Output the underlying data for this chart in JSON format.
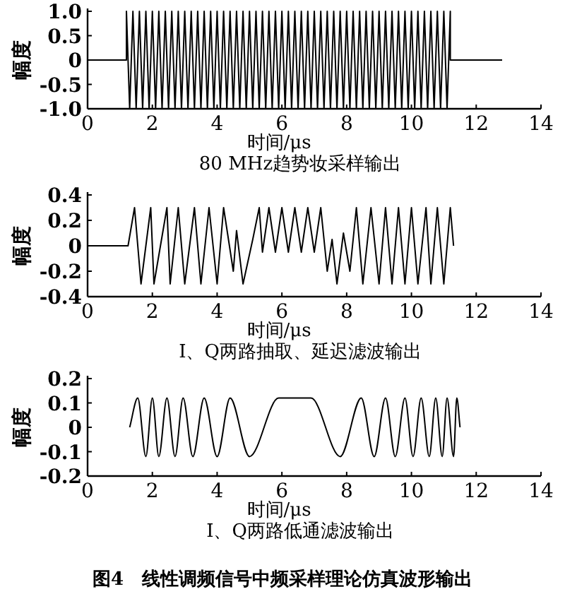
{
  "chart_data": [
    {
      "type": "line",
      "title": "80 MHz趋势妆采样输出",
      "xlabel": "时间/μs",
      "ylabel": "幅度",
      "xlim": [
        0,
        14
      ],
      "xticks": [
        0,
        2,
        4,
        6,
        8,
        10,
        12,
        14
      ],
      "ylim": [
        -1,
        1
      ],
      "yticks": [
        {
          "value": -1,
          "label": "-1.0"
        },
        -0.5,
        0,
        0.5,
        {
          "value": 1,
          "label": "1.0"
        }
      ],
      "series": [
        {
          "color": "#000000",
          "x": [
            0,
            1.2,
            1.2,
            1.3,
            1.4,
            1.5,
            1.6,
            1.7,
            1.8,
            1.9,
            2.0,
            2.1,
            2.2,
            2.3,
            2.4,
            2.5,
            2.6,
            2.7,
            2.8,
            2.9,
            3.0,
            3.1,
            3.2,
            3.3,
            3.4,
            3.5,
            3.6,
            3.7,
            3.8,
            3.9,
            4.0,
            4.1,
            4.2,
            4.3,
            4.4,
            4.5,
            4.6,
            4.7,
            4.8,
            4.9,
            5.0,
            5.1,
            5.2,
            5.3,
            5.4,
            5.5,
            5.6,
            5.7,
            5.8,
            5.9,
            6.0,
            6.1,
            6.2,
            6.3,
            6.4,
            6.5,
            6.6,
            6.7,
            6.8,
            6.9,
            7.0,
            7.1,
            7.2,
            7.3,
            7.4,
            7.5,
            7.6,
            7.7,
            7.8,
            7.9,
            8.0,
            8.1,
            8.2,
            8.3,
            8.4,
            8.5,
            8.6,
            8.7,
            8.8,
            8.9,
            9.0,
            9.1,
            9.2,
            9.3,
            9.4,
            9.5,
            9.6,
            9.7,
            9.8,
            9.9,
            10.0,
            10.1,
            10.2,
            10.3,
            10.4,
            10.5,
            10.6,
            10.7,
            10.8,
            10.9,
            11.0,
            11.1,
            11.2,
            11.2,
            12.8
          ],
          "values": [
            0,
            0,
            1,
            -1,
            1,
            -1,
            1,
            -1,
            1,
            -1,
            1,
            -1,
            1,
            -1,
            1,
            -1,
            1,
            -1,
            1,
            -1,
            1,
            -1,
            1,
            -1,
            1,
            -1,
            1,
            -1,
            1,
            -1,
            1,
            -1,
            1,
            -1,
            1,
            -1,
            1,
            -1,
            1,
            -1,
            1,
            -1,
            1,
            -1,
            1,
            -1,
            1,
            -1,
            1,
            -1,
            1,
            -1,
            1,
            -1,
            1,
            -1,
            1,
            -1,
            1,
            -1,
            1,
            -1,
            1,
            -1,
            1,
            -1,
            1,
            -1,
            1,
            -1,
            1,
            -1,
            1,
            -1,
            1,
            -1,
            1,
            -1,
            1,
            -1,
            1,
            -1,
            1,
            -1,
            1,
            -1,
            1,
            -1,
            1,
            -1,
            1,
            -1,
            1,
            -1,
            1,
            -1,
            1,
            -1,
            1,
            -1,
            1,
            -1,
            1,
            0,
            0
          ]
        }
      ]
    },
    {
      "type": "line",
      "title": "I、Q两路抽取、延迟滤波输出",
      "xlabel": "时间/μs",
      "ylabel": "幅度",
      "xlim": [
        0,
        14
      ],
      "xticks": [
        0,
        2,
        4,
        6,
        8,
        10,
        12,
        14
      ],
      "ylim": [
        -0.4,
        0.4
      ],
      "yticks": [
        -0.4,
        -0.2,
        0,
        0.2,
        0.4
      ],
      "series": [
        {
          "color": "#000000",
          "x": [
            0,
            1.25,
            1.45,
            1.65,
            1.95,
            2.05,
            2.45,
            2.55,
            2.8,
            3.0,
            3.3,
            3.5,
            3.75,
            4.0,
            4.2,
            4.5,
            4.6,
            4.8,
            5.1,
            5.3,
            5.4,
            5.6,
            5.8,
            6.0,
            6.2,
            6.4,
            6.6,
            6.8,
            7.0,
            7.2,
            7.4,
            7.55,
            7.7,
            7.9,
            8.1,
            8.3,
            8.5,
            8.75,
            9.0,
            9.2,
            9.4,
            9.6,
            9.8,
            10.0,
            10.2,
            10.45,
            10.6,
            10.8,
            11.0,
            11.2,
            11.3
          ],
          "values": [
            0,
            0,
            0.3,
            -0.3,
            0.3,
            -0.3,
            0.3,
            -0.3,
            0.3,
            -0.3,
            0.3,
            -0.3,
            0.3,
            -0.3,
            0.3,
            -0.2,
            0.12,
            -0.3,
            0.05,
            0.3,
            -0.05,
            0.3,
            -0.05,
            0.3,
            -0.05,
            0.3,
            -0.05,
            0.3,
            -0.05,
            0.3,
            -0.2,
            0.05,
            -0.3,
            0.1,
            -0.2,
            0.3,
            -0.3,
            0.3,
            -0.3,
            0.3,
            -0.3,
            0.3,
            -0.3,
            0.3,
            -0.3,
            0.3,
            -0.3,
            0.3,
            -0.3,
            0.3,
            0
          ]
        }
      ]
    },
    {
      "type": "line",
      "title": "I、Q两路低通滤波输出",
      "xlabel": "时间/μs",
      "ylabel": "幅度",
      "xlim": [
        0,
        14
      ],
      "xticks": [
        0,
        2,
        4,
        6,
        8,
        10,
        12,
        14
      ],
      "ylim": [
        -0.2,
        0.2
      ],
      "yticks": [
        -0.2,
        -0.1,
        0,
        0.1,
        0.2
      ],
      "annotations": [
        "图4　线性调频信号中频采样理论仿真波形输出"
      ],
      "series": [
        {
          "color": "#000000",
          "x": [
            1.3,
            1.55,
            1.8,
            2.0,
            2.2,
            2.45,
            2.7,
            2.95,
            3.25,
            3.6,
            4.0,
            4.4,
            5.0,
            5.9,
            6.9,
            7.8,
            8.45,
            8.85,
            9.2,
            9.5,
            9.8,
            10.05,
            10.3,
            10.55,
            10.75,
            10.95,
            11.1,
            11.3,
            11.4,
            11.5
          ],
          "values": [
            0,
            0.12,
            -0.12,
            0.12,
            -0.12,
            0.12,
            -0.12,
            0.12,
            -0.12,
            0.12,
            -0.12,
            0.12,
            -0.12,
            0.12,
            0.12,
            -0.12,
            0.12,
            -0.12,
            0.12,
            -0.12,
            0.12,
            -0.12,
            0.12,
            -0.12,
            0.12,
            -0.12,
            0.12,
            -0.12,
            0.12,
            0
          ]
        }
      ]
    }
  ]
}
